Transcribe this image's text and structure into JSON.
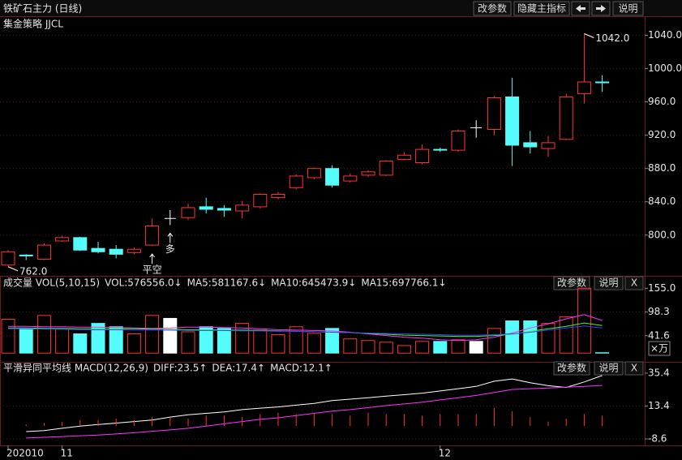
{
  "header": {
    "title": "铁矿石主力 (日线)",
    "buttons": [
      "改参数",
      "隐藏主指标",
      "说明"
    ]
  },
  "chart_data": [
    {
      "type": "candlestick",
      "title": "集金策略 JJCL",
      "categories": [
        "202010",
        null,
        null,
        "11",
        null,
        null,
        null,
        null,
        null,
        null,
        null,
        null,
        null,
        null,
        null,
        null,
        null,
        null,
        null,
        null,
        null,
        null,
        null,
        null,
        "12",
        null,
        null,
        null,
        null,
        null,
        null,
        null,
        null,
        null
      ],
      "open": [
        764,
        776,
        771,
        793,
        797,
        784,
        783,
        779,
        788,
        820,
        821,
        834,
        832,
        829,
        834,
        845,
        857,
        869,
        880,
        865,
        872,
        872,
        891,
        887,
        903,
        902,
        929,
        927,
        966,
        911,
        904,
        915,
        970,
        984
      ],
      "high": [
        782,
        777,
        790,
        799,
        798,
        792,
        788,
        785,
        820,
        830,
        838,
        845,
        836,
        841,
        850,
        852,
        873,
        881,
        884,
        874,
        878,
        890,
        900,
        909,
        905,
        927,
        938,
        967,
        989,
        925,
        919,
        970,
        1042,
        992
      ],
      "low": [
        762,
        770,
        770,
        792,
        781,
        778,
        772,
        777,
        787,
        812,
        818,
        826,
        822,
        820,
        832,
        843,
        855,
        867,
        857,
        863,
        870,
        871,
        890,
        885,
        900,
        900,
        917,
        920,
        883,
        898,
        894,
        914,
        958,
        972
      ],
      "close": [
        780,
        775.5,
        788,
        797,
        782,
        780,
        777,
        783,
        811,
        820,
        833,
        831,
        830,
        836,
        849,
        849,
        871,
        880,
        860,
        871,
        876,
        889,
        896,
        903,
        902.5,
        925,
        929,
        965,
        908,
        906,
        911,
        966,
        984,
        983.5
      ],
      "up_color": "#ff3232",
      "down_color": "#54fcfc",
      "flat_color": "#ffffff",
      "ylim": [
        753,
        1061
      ],
      "yticks": [
        {
          "value": 800,
          "label": "800.0"
        },
        {
          "value": 840,
          "label": "840.0"
        },
        {
          "value": 880,
          "label": "880.0"
        },
        {
          "value": 920,
          "label": "920.0"
        },
        {
          "value": 960,
          "label": "960.0"
        },
        {
          "value": 1000,
          "label": "1000.0"
        },
        {
          "value": 1040,
          "label": "1040.0"
        }
      ],
      "grid": true,
      "annotations": [
        {
          "label": "762.0",
          "value": 762,
          "category": 0
        },
        {
          "label": "1042.0",
          "value": 1042,
          "category": 32
        }
      ],
      "signals": [
        {
          "label": "平空",
          "category": 8,
          "color": "#ff3232"
        },
        {
          "label": "多",
          "category": 9,
          "color": "#ff3232"
        }
      ]
    },
    {
      "type": "bar",
      "title": "成交量 VOL(5,10,15)",
      "buttons": [
        "改参数",
        "说明",
        "X"
      ],
      "unit": "×万",
      "series": [
        {
          "name": "VOL:576556.0↓",
          "type": "bar",
          "values": [
            81,
            59,
            90,
            57,
            46,
            71,
            63,
            46,
            90,
            83,
            51,
            63,
            59,
            71,
            55,
            44,
            63,
            47,
            59,
            34,
            30,
            26,
            18,
            28,
            28,
            32,
            28,
            59,
            77,
            77,
            71,
            87,
            155,
            1
          ]
        },
        {
          "name": "MA5:581167.6↓",
          "type": "line",
          "color": "#ff32ff",
          "values": [
            64,
            64,
            63,
            63,
            62,
            62,
            61,
            60,
            59,
            60,
            62,
            62,
            61,
            60,
            58,
            56,
            55,
            54,
            53,
            50,
            46,
            42,
            38,
            36,
            32,
            30,
            32,
            38,
            48,
            60,
            70,
            82,
            92,
            78
          ]
        },
        {
          "name": "MA10:645473.9↓",
          "type": "line",
          "color": "#32ff32",
          "values": [
            60,
            60,
            59,
            59,
            58,
            58,
            58,
            58,
            57,
            57,
            56,
            56,
            55,
            55,
            54,
            53,
            52,
            51,
            50,
            49,
            47,
            45,
            43,
            42,
            41,
            40,
            40,
            42,
            45,
            52,
            58,
            64,
            72,
            66
          ]
        },
        {
          "name": "MA15:697766.1↓",
          "type": "line",
          "color": "#3c3cff",
          "values": [
            58,
            58,
            57,
            57,
            56,
            56,
            56,
            55,
            55,
            55,
            54,
            54,
            54,
            53,
            53,
            52,
            52,
            51,
            50,
            49,
            48,
            47,
            46,
            45,
            44,
            43,
            43,
            44,
            46,
            50,
            55,
            60,
            65,
            60
          ]
        }
      ],
      "ylim": [
        -17,
        175
      ],
      "yticks": [
        41.6,
        98.3,
        {
          "value": 155,
          "label": "155.0"
        }
      ],
      "grid": true
    },
    {
      "type": "bar",
      "title": "平滑异同平均线 MACD(12,26,9)",
      "buttons": [
        "改参数",
        "说明",
        "X"
      ],
      "series": [
        {
          "name": "DIFF:23.5↑",
          "type": "line",
          "color": "#ffffff",
          "values": [
            null,
            -3.7,
            -3,
            -1.5,
            0,
            1,
            2,
            3,
            4,
            6,
            7.5,
            8.5,
            9.5,
            11,
            12,
            12.8,
            14,
            15.2,
            17,
            18,
            19,
            20,
            21,
            22,
            23.5,
            25,
            26.5,
            30,
            31.5,
            29,
            27,
            25.8,
            29.5,
            33.8
          ]
        },
        {
          "name": "DEA:17.4↑",
          "type": "line",
          "color": "#ff32ff",
          "values": [
            null,
            -8,
            -7.5,
            -7,
            -6.5,
            -6,
            -5.3,
            -4.5,
            -3.5,
            -2.6,
            -1.5,
            0,
            1.5,
            3,
            4.5,
            5.5,
            7,
            8.5,
            10,
            11,
            12.3,
            13.7,
            14.8,
            16,
            17.5,
            19,
            20.5,
            22.5,
            24.5,
            25,
            25.5,
            26,
            26.5,
            27.2
          ]
        },
        {
          "name": "MACD:12.1↑",
          "type": "bar",
          "color": "#ff3232",
          "legend_color": "#32ff32",
          "values": [
            null,
            1,
            2,
            3,
            4,
            4,
            5,
            4,
            6,
            6,
            5,
            7,
            7,
            6,
            8,
            9,
            8,
            9,
            8,
            7,
            9,
            8,
            8,
            7,
            8,
            8,
            8,
            12,
            10,
            6,
            3,
            5,
            8,
            7
          ]
        }
      ],
      "ylim": [
        -12.4,
        40.8
      ],
      "yticks": [
        -8.6,
        13.4,
        35.4
      ],
      "grid": true
    }
  ]
}
